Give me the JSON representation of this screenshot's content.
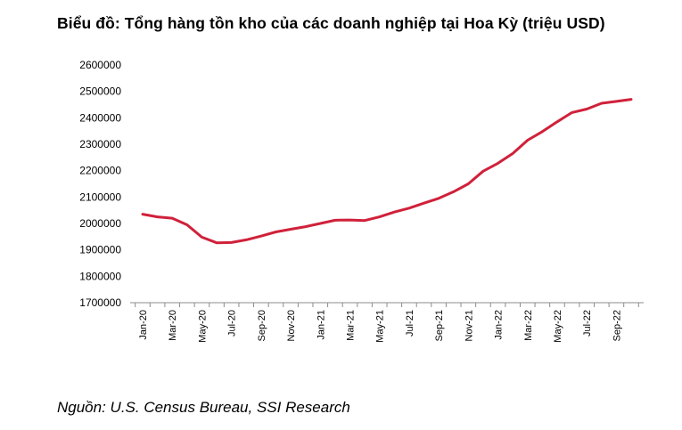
{
  "title": "Biểu đồ: Tổng hàng tồn kho của các doanh nghiệp tại Hoa Kỳ (triệu USD)",
  "source": "Nguồn: U.S. Census Bureau, SSI Research",
  "chart_data": {
    "type": "line",
    "title": "Biểu đồ: Tổng hàng tồn kho của các doanh nghiệp tại Hoa Kỳ (triệu USD)",
    "xlabel": "",
    "ylabel": "",
    "ylim": [
      1700000,
      2600000
    ],
    "yticks": [
      "2600000",
      "2500000",
      "2400000",
      "2300000",
      "2200000",
      "2100000",
      "2000000",
      "1900000",
      "1800000",
      "1700000"
    ],
    "grid": false,
    "legend": "none",
    "color": "#d0213a",
    "x": [
      "Jan-20",
      "Feb-20",
      "Mar-20",
      "Apr-20",
      "May-20",
      "Jun-20",
      "Jul-20",
      "Aug-20",
      "Sep-20",
      "Oct-20",
      "Nov-20",
      "Dec-20",
      "Jan-21",
      "Feb-21",
      "Mar-21",
      "Apr-21",
      "May-21",
      "Jun-21",
      "Jul-21",
      "Aug-21",
      "Sep-21",
      "Oct-21",
      "Nov-21",
      "Dec-21",
      "Jan-22",
      "Feb-22",
      "Mar-22",
      "Apr-22",
      "May-22",
      "Jun-22",
      "Jul-22",
      "Aug-22",
      "Sep-22",
      "Oct-22"
    ],
    "xtick_labels": [
      "Jan-20",
      "Mar-20",
      "May-20",
      "Jul-20",
      "Sep-20",
      "Nov-20",
      "Jan-21",
      "Mar-21",
      "May-21",
      "Jul-21",
      "Sep-21",
      "Nov-21",
      "Jan-22",
      "Mar-22",
      "May-22",
      "Jul-22",
      "Sep-22"
    ],
    "values": [
      2035000,
      2025000,
      2020000,
      1995000,
      1948000,
      1927000,
      1928000,
      1938000,
      1952000,
      1968000,
      1978000,
      1988000,
      2000000,
      2012000,
      2013000,
      2011000,
      2025000,
      2043000,
      2058000,
      2077000,
      2095000,
      2120000,
      2150000,
      2198000,
      2228000,
      2265000,
      2315000,
      2348000,
      2385000,
      2420000,
      2433000,
      2455000,
      2462000,
      2470000
    ]
  }
}
